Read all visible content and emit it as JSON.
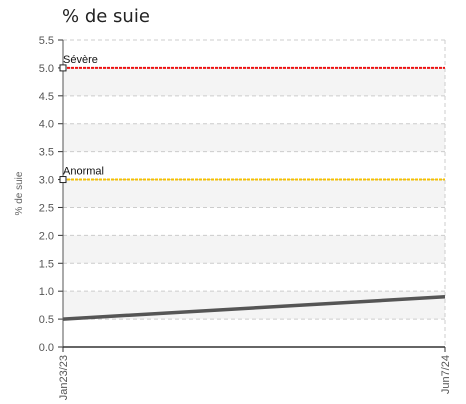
{
  "chart_data": {
    "type": "line",
    "title": "% de suie",
    "ylabel": "% de suie",
    "xlabel": "",
    "ylim": [
      0,
      5.5
    ],
    "yticks": [
      0.0,
      0.5,
      1.0,
      1.5,
      2.0,
      2.5,
      3.0,
      3.5,
      4.0,
      4.5,
      5.0,
      5.5
    ],
    "xticks": [
      "Jan23/23",
      "Jun7/24"
    ],
    "grid": true,
    "band_color": "#f4f4f4",
    "series": [
      {
        "x": [
          "Jan23/23",
          "Jun7/24"
        ],
        "values": [
          0.5,
          0.9
        ],
        "color": "#555555"
      }
    ],
    "thresholds": [
      {
        "label": "Sévère",
        "value": 5.0,
        "color": "#ee1111"
      },
      {
        "label": "Anormal",
        "value": 3.0,
        "color": "#f5c000"
      }
    ]
  }
}
